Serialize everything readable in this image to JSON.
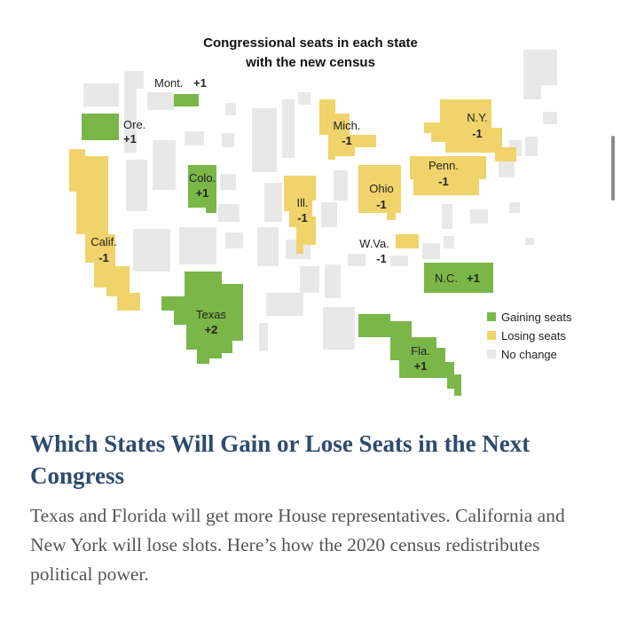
{
  "map": {
    "title_line1": "Congressional seats in each state",
    "title_line2": "with the new census",
    "colors": {
      "gain": "#7ab648",
      "lose": "#f0d36a",
      "no_change": "#e8e8e8"
    },
    "legend": [
      {
        "label": "Gaining seats",
        "status": "gain"
      },
      {
        "label": "Losing seats",
        "status": "lose"
      },
      {
        "label": "No change",
        "status": "no_change"
      }
    ],
    "states": [
      {
        "id": "mont",
        "name": "Mont.",
        "change": "+1",
        "status": "gain"
      },
      {
        "id": "ore",
        "name": "Ore.",
        "change": "+1",
        "status": "gain"
      },
      {
        "id": "calif",
        "name": "Calif.",
        "change": "-1",
        "status": "lose"
      },
      {
        "id": "colo",
        "name": "Colo.",
        "change": "+1",
        "status": "gain"
      },
      {
        "id": "texas",
        "name": "Texas",
        "change": "+2",
        "status": "gain"
      },
      {
        "id": "ill",
        "name": "Ill.",
        "change": "-1",
        "status": "lose"
      },
      {
        "id": "mich",
        "name": "Mich.",
        "change": "-1",
        "status": "lose"
      },
      {
        "id": "ohio",
        "name": "Ohio",
        "change": "-1",
        "status": "lose"
      },
      {
        "id": "wva",
        "name": "W.Va.",
        "change": "-1",
        "status": "lose"
      },
      {
        "id": "penn",
        "name": "Penn.",
        "change": "-1",
        "status": "lose"
      },
      {
        "id": "ny",
        "name": "N.Y.",
        "change": "-1",
        "status": "lose"
      },
      {
        "id": "nc",
        "name": "N.C.",
        "change": "+1",
        "status": "gain"
      },
      {
        "id": "fla",
        "name": "Fla.",
        "change": "+1",
        "status": "gain"
      }
    ]
  },
  "article": {
    "headline": "Which States Will Gain or Lose Seats in the Next Congress",
    "summary": "Texas and Florida will get more House representatives. California and New York will lose slots. Here’s how the 2020 census redistributes political power."
  }
}
